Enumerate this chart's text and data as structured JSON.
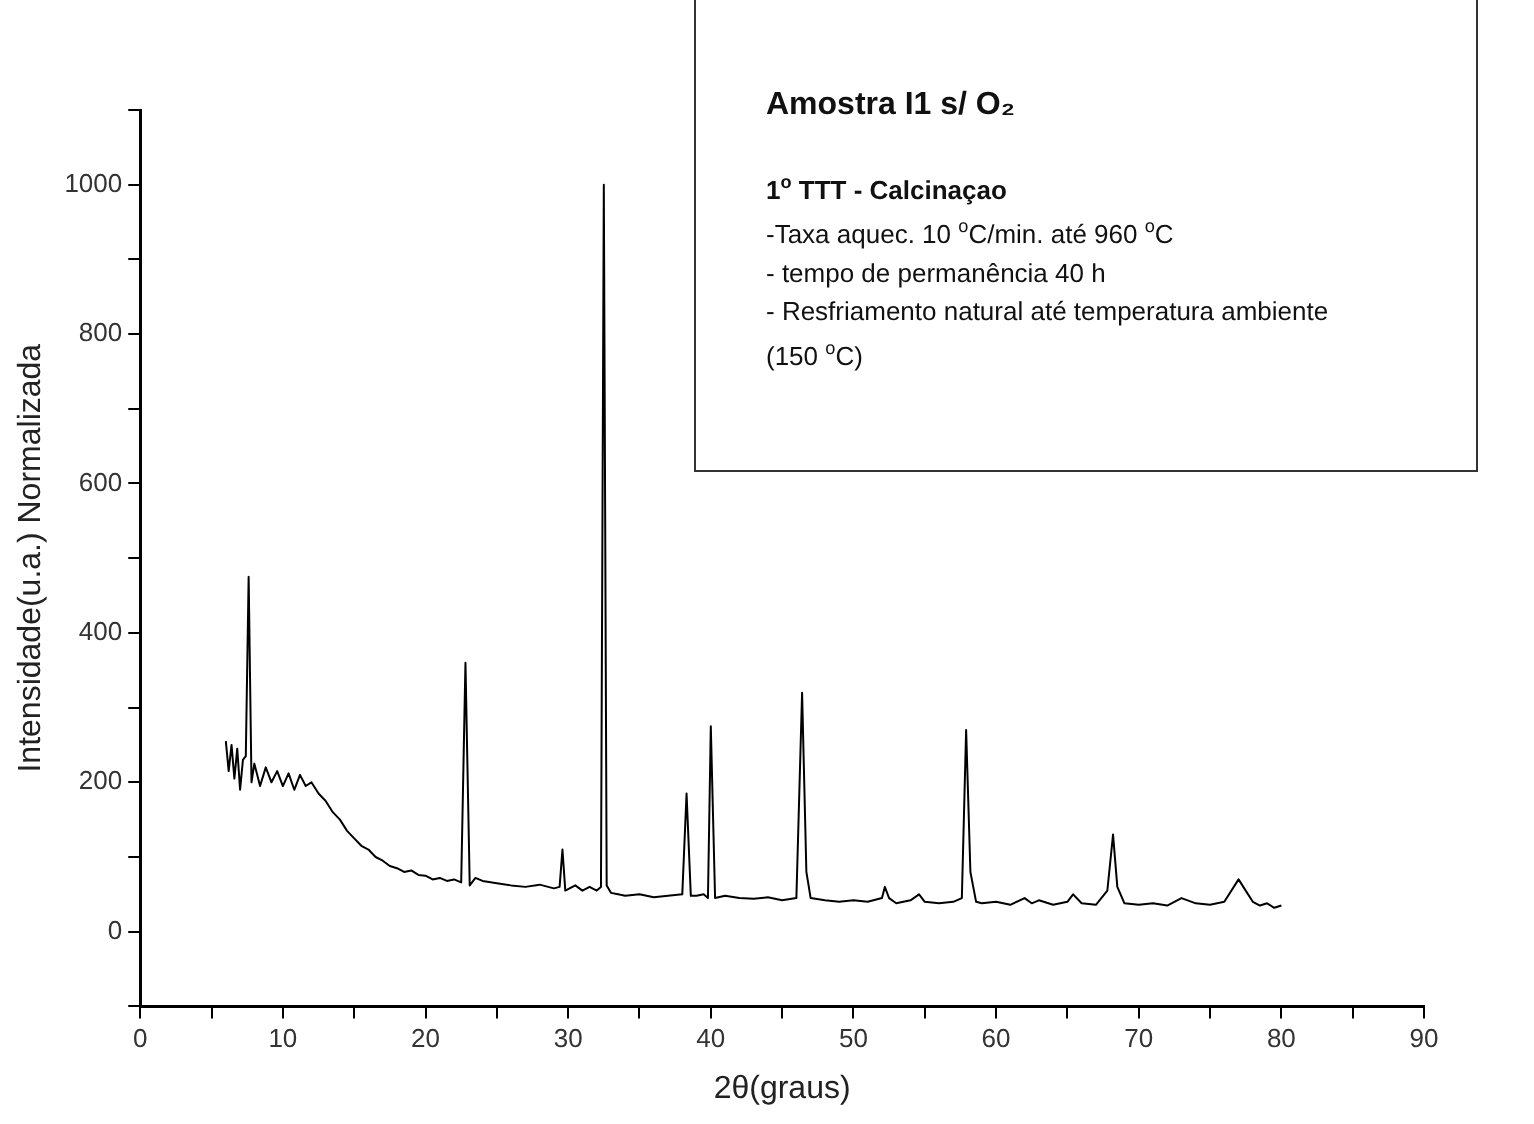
{
  "chart_data": {
    "type": "line",
    "title": "Amostra I1 s/ O₂",
    "xlabel": "2θ(graus)",
    "ylabel": "Intensidade(u.a.) Normalizada",
    "annotations": [
      "1$^{o}$ TTT - Calcinaçao",
      "-Taxa aquec. 10 $^{o}$C/min. até 960 $^{o}$C",
      "- tempo de permanência 40 h",
      "- Resfriamento natural até temperatura ambiente",
      "(150 $^{o}$C)"
    ],
    "xlim": [
      0,
      90
    ],
    "xticks": [
      0,
      {
        "value": 5,
        "label": null
      },
      10,
      {
        "value": 15,
        "label": null
      },
      20,
      {
        "value": 25,
        "label": null
      },
      30,
      {
        "value": 35,
        "label": null
      },
      40,
      {
        "value": 45,
        "label": null
      },
      50,
      {
        "value": 55,
        "label": null
      },
      60,
      {
        "value": 65,
        "label": null
      },
      70,
      {
        "value": 75,
        "label": null
      },
      80,
      {
        "value": 85,
        "label": null
      },
      90
    ],
    "ylim": [
      -100,
      1100
    ],
    "yticks": [
      {
        "value": -100,
        "label": null
      },
      0,
      {
        "value": 100,
        "label": null
      },
      200,
      {
        "value": 300,
        "label": null
      },
      400,
      {
        "value": 500,
        "label": null
      },
      600,
      {
        "value": 700,
        "label": null
      },
      800,
      {
        "value": 900,
        "label": null
      },
      1000,
      {
        "value": 1100,
        "label": null
      }
    ],
    "grid": false,
    "legend": false,
    "marker": "none",
    "line_style": "solid",
    "series": [
      {
        "color": "#000000",
        "x": [
          6.0,
          6.2,
          6.4,
          6.6,
          6.8,
          7.0,
          7.2,
          7.4,
          7.6,
          7.8,
          8.0,
          8.4,
          8.8,
          9.2,
          9.6,
          10.0,
          10.4,
          10.8,
          11.2,
          11.6,
          12.0,
          12.5,
          13.0,
          13.5,
          14.0,
          14.5,
          15.0,
          15.5,
          16.0,
          16.5,
          17.0,
          17.5,
          18.0,
          18.5,
          19.0,
          19.5,
          20.0,
          20.5,
          21.0,
          21.5,
          22.0,
          22.5,
          22.8,
          23.1,
          23.5,
          24.0,
          25.0,
          26.0,
          27.0,
          28.0,
          29.0,
          29.4,
          29.6,
          29.8,
          30.5,
          31.0,
          31.5,
          32.0,
          32.3,
          32.5,
          32.7,
          33.0,
          33.5,
          34.0,
          35.0,
          36.0,
          37.0,
          38.0,
          38.3,
          38.6,
          39.0,
          39.5,
          39.8,
          40.0,
          40.3,
          41.0,
          42.0,
          43.0,
          44.0,
          45.0,
          46.0,
          46.4,
          46.7,
          47.0,
          48.0,
          49.0,
          50.0,
          51.0,
          52.0,
          52.2,
          52.5,
          53.0,
          54.0,
          54.6,
          55.0,
          56.0,
          57.0,
          57.6,
          57.9,
          58.2,
          58.6,
          59.0,
          60.0,
          61.0,
          62.0,
          62.5,
          63.0,
          64.0,
          65.0,
          65.4,
          66.0,
          67.0,
          67.8,
          68.2,
          68.5,
          69.0,
          70.0,
          71.0,
          72.0,
          73.0,
          74.0,
          75.0,
          76.0,
          77.0,
          77.5,
          78.0,
          78.5,
          79.0,
          79.5,
          80.0
        ],
        "values": [
          255,
          215,
          250,
          205,
          245,
          190,
          230,
          235,
          475,
          200,
          225,
          195,
          220,
          200,
          215,
          195,
          212,
          190,
          210,
          195,
          200,
          185,
          175,
          160,
          150,
          135,
          125,
          115,
          110,
          100,
          95,
          88,
          85,
          80,
          82,
          76,
          75,
          70,
          72,
          68,
          70,
          66,
          360,
          62,
          72,
          68,
          65,
          62,
          60,
          63,
          58,
          60,
          110,
          55,
          62,
          55,
          60,
          55,
          60,
          1000,
          62,
          52,
          50,
          48,
          50,
          46,
          48,
          50,
          185,
          48,
          48,
          50,
          45,
          275,
          45,
          48,
          45,
          44,
          46,
          42,
          45,
          320,
          80,
          45,
          42,
          40,
          42,
          40,
          45,
          60,
          45,
          38,
          42,
          50,
          40,
          38,
          40,
          45,
          270,
          80,
          40,
          38,
          40,
          36,
          45,
          38,
          42,
          36,
          40,
          50,
          38,
          36,
          55,
          130,
          60,
          38,
          36,
          38,
          35,
          45,
          38,
          36,
          40,
          70,
          55,
          40,
          35,
          38,
          32,
          35
        ]
      }
    ]
  }
}
